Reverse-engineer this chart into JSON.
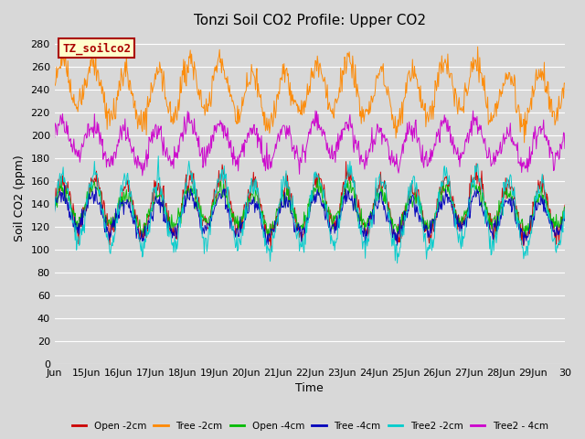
{
  "title": "Tonzi Soil CO2 Profile: Upper CO2",
  "ylabel": "Soil CO2 (ppm)",
  "xlabel": "Time",
  "legend_label": "TZ_soilco2",
  "ylim": [
    0,
    290
  ],
  "yticks": [
    0,
    20,
    40,
    60,
    80,
    100,
    120,
    140,
    160,
    180,
    200,
    220,
    240,
    260,
    280
  ],
  "xtick_labels": [
    "Jun",
    "15Jun",
    "16Jun",
    "17Jun",
    "18Jun",
    "19Jun",
    "20Jun",
    "21Jun",
    "22Jun",
    "23Jun",
    "24Jun",
    "25Jun",
    "26Jun",
    "27Jun",
    "28Jun",
    "29Jun",
    "30"
  ],
  "series": [
    {
      "name": "Open -2cm",
      "color": "#cc0000",
      "base": 138,
      "amp": 22,
      "phase": 0.0,
      "noise": 5,
      "slow_amp": 5,
      "slow_phase": 0.0
    },
    {
      "name": "Tree -2cm",
      "color": "#ff8800",
      "base": 238,
      "amp": 22,
      "phase": 0.2,
      "noise": 6,
      "slow_amp": 8,
      "slow_phase": 0.5
    },
    {
      "name": "Open -4cm",
      "color": "#00bb00",
      "base": 136,
      "amp": 15,
      "phase": 0.1,
      "noise": 4,
      "slow_amp": 4,
      "slow_phase": 0.2
    },
    {
      "name": "Tree -4cm",
      "color": "#0000bb",
      "base": 130,
      "amp": 15,
      "phase": 0.15,
      "noise": 4,
      "slow_amp": 4,
      "slow_phase": 0.3
    },
    {
      "name": "Tree2 -2cm",
      "color": "#00cccc",
      "base": 133,
      "amp": 30,
      "phase": 0.05,
      "noise": 5,
      "slow_amp": 5,
      "slow_phase": 0.1
    },
    {
      "name": "Tree2 - 4cm",
      "color": "#cc00cc",
      "base": 193,
      "amp": 15,
      "phase": 0.3,
      "noise": 5,
      "slow_amp": 5,
      "slow_phase": 0.7
    }
  ],
  "fig_facecolor": "#d8d8d8",
  "plot_bg": "#d8d8d8",
  "grid_color": "#ffffff",
  "title_fontsize": 11,
  "axis_fontsize": 9,
  "tick_fontsize": 8,
  "legend_box_facecolor": "#ffffcc",
  "legend_box_edgecolor": "#aa0000",
  "legend_text_color": "#aa0000"
}
